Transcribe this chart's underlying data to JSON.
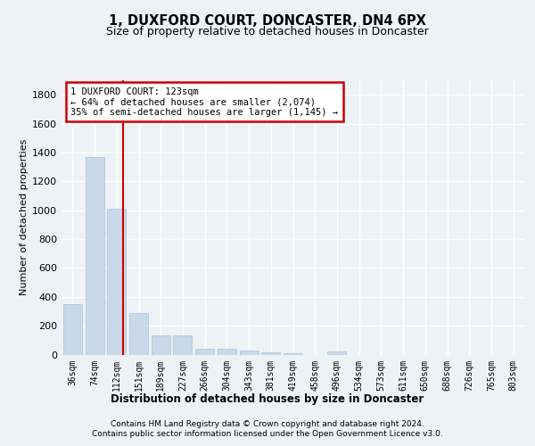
{
  "title": "1, DUXFORD COURT, DONCASTER, DN4 6PX",
  "subtitle": "Size of property relative to detached houses in Doncaster",
  "xlabel": "Distribution of detached houses by size in Doncaster",
  "ylabel": "Number of detached properties",
  "footer_line1": "Contains HM Land Registry data © Crown copyright and database right 2024.",
  "footer_line2": "Contains public sector information licensed under the Open Government Licence v3.0.",
  "annotation_title": "1 DUXFORD COURT: 123sqm",
  "annotation_line2": "← 64% of detached houses are smaller (2,074)",
  "annotation_line3": "35% of semi-detached houses are larger (1,145) →",
  "bar_color": "#c9d9ea",
  "bar_edge_color": "#a8c0d6",
  "vline_color": "#cc0000",
  "annotation_box_edge_color": "#cc0000",
  "annotation_box_face_color": "#ffffff",
  "categories": [
    "36sqm",
    "74sqm",
    "112sqm",
    "151sqm",
    "189sqm",
    "227sqm",
    "266sqm",
    "304sqm",
    "343sqm",
    "381sqm",
    "419sqm",
    "458sqm",
    "496sqm",
    "534sqm",
    "573sqm",
    "611sqm",
    "650sqm",
    "688sqm",
    "726sqm",
    "765sqm",
    "803sqm"
  ],
  "values": [
    350,
    1370,
    1010,
    285,
    130,
    130,
    40,
    40,
    30,
    18,
    8,
    0,
    22,
    0,
    0,
    0,
    0,
    0,
    0,
    0,
    0
  ],
  "ylim": [
    0,
    1900
  ],
  "yticks": [
    0,
    200,
    400,
    600,
    800,
    1000,
    1200,
    1400,
    1600,
    1800
  ],
  "background_color": "#eef2f6",
  "grid_color": "#ffffff",
  "vline_x_index": 2.3,
  "figwidth": 6.0,
  "figheight": 5.0,
  "fig_dpi": 100
}
